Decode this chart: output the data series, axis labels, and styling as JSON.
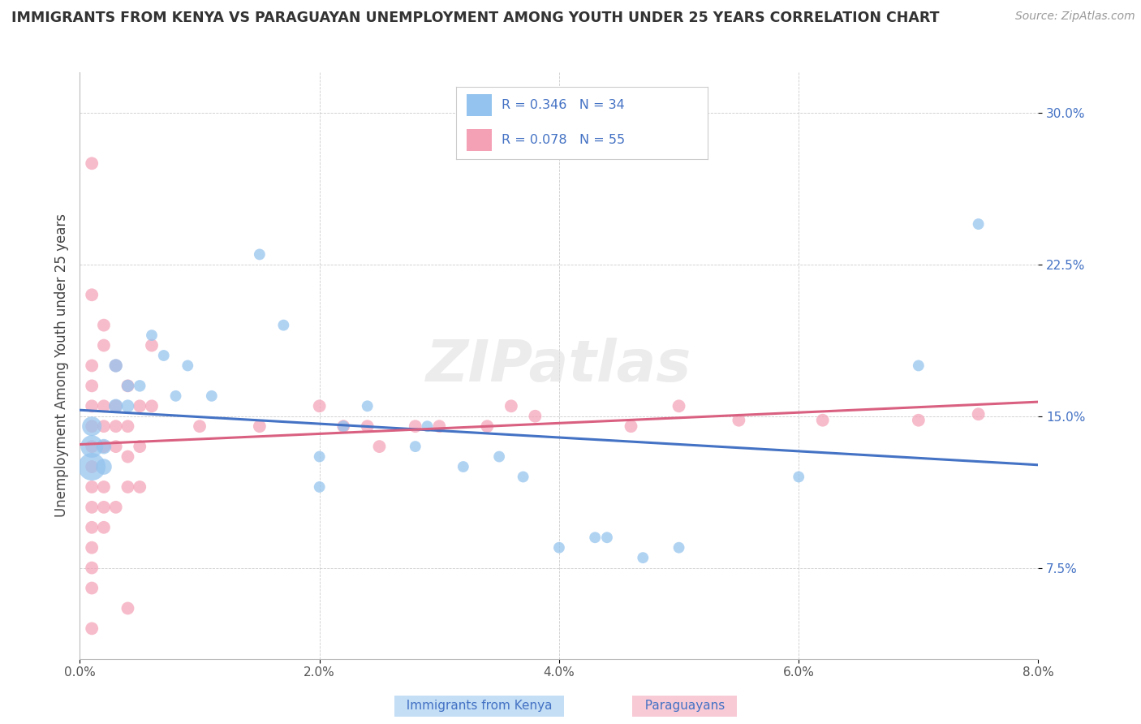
{
  "title": "IMMIGRANTS FROM KENYA VS PARAGUAYAN UNEMPLOYMENT AMONG YOUTH UNDER 25 YEARS CORRELATION CHART",
  "source": "Source: ZipAtlas.com",
  "ylabel": "Unemployment Among Youth under 25 years",
  "legend_label1": "Immigrants from Kenya",
  "legend_label2": "Paraguayans",
  "color_blue": "#93C3EE",
  "color_pink": "#F4A0B5",
  "color_blue_line": "#4472C4",
  "color_pink_line": "#D96080",
  "color_text": "#4472C4",
  "R1": 0.346,
  "N1": 34,
  "R2": 0.078,
  "N2": 55,
  "xlim": [
    0.0,
    0.08
  ],
  "ylim": [
    0.03,
    0.32
  ],
  "blue_points": [
    [
      0.001,
      0.125
    ],
    [
      0.001,
      0.135
    ],
    [
      0.001,
      0.145
    ],
    [
      0.002,
      0.125
    ],
    [
      0.002,
      0.135
    ],
    [
      0.003,
      0.155
    ],
    [
      0.003,
      0.175
    ],
    [
      0.004,
      0.155
    ],
    [
      0.004,
      0.165
    ],
    [
      0.005,
      0.165
    ],
    [
      0.006,
      0.19
    ],
    [
      0.007,
      0.18
    ],
    [
      0.008,
      0.16
    ],
    [
      0.009,
      0.175
    ],
    [
      0.011,
      0.16
    ],
    [
      0.015,
      0.23
    ],
    [
      0.017,
      0.195
    ],
    [
      0.02,
      0.13
    ],
    [
      0.02,
      0.115
    ],
    [
      0.022,
      0.145
    ],
    [
      0.024,
      0.155
    ],
    [
      0.028,
      0.135
    ],
    [
      0.029,
      0.145
    ],
    [
      0.032,
      0.125
    ],
    [
      0.035,
      0.13
    ],
    [
      0.037,
      0.12
    ],
    [
      0.04,
      0.085
    ],
    [
      0.043,
      0.09
    ],
    [
      0.044,
      0.09
    ],
    [
      0.047,
      0.08
    ],
    [
      0.05,
      0.085
    ],
    [
      0.06,
      0.12
    ],
    [
      0.07,
      0.175
    ],
    [
      0.075,
      0.245
    ]
  ],
  "pink_points": [
    [
      0.001,
      0.275
    ],
    [
      0.001,
      0.21
    ],
    [
      0.002,
      0.195
    ],
    [
      0.002,
      0.185
    ],
    [
      0.001,
      0.175
    ],
    [
      0.001,
      0.165
    ],
    [
      0.001,
      0.155
    ],
    [
      0.001,
      0.145
    ],
    [
      0.001,
      0.135
    ],
    [
      0.001,
      0.125
    ],
    [
      0.001,
      0.115
    ],
    [
      0.001,
      0.105
    ],
    [
      0.001,
      0.095
    ],
    [
      0.001,
      0.085
    ],
    [
      0.001,
      0.075
    ],
    [
      0.001,
      0.065
    ],
    [
      0.001,
      0.045
    ],
    [
      0.002,
      0.155
    ],
    [
      0.002,
      0.145
    ],
    [
      0.002,
      0.135
    ],
    [
      0.002,
      0.115
    ],
    [
      0.002,
      0.105
    ],
    [
      0.002,
      0.095
    ],
    [
      0.003,
      0.175
    ],
    [
      0.003,
      0.155
    ],
    [
      0.003,
      0.145
    ],
    [
      0.003,
      0.135
    ],
    [
      0.003,
      0.105
    ],
    [
      0.004,
      0.165
    ],
    [
      0.004,
      0.145
    ],
    [
      0.004,
      0.13
    ],
    [
      0.004,
      0.115
    ],
    [
      0.004,
      0.055
    ],
    [
      0.005,
      0.155
    ],
    [
      0.005,
      0.135
    ],
    [
      0.005,
      0.115
    ],
    [
      0.006,
      0.185
    ],
    [
      0.006,
      0.155
    ],
    [
      0.01,
      0.145
    ],
    [
      0.015,
      0.145
    ],
    [
      0.02,
      0.155
    ],
    [
      0.022,
      0.145
    ],
    [
      0.024,
      0.145
    ],
    [
      0.025,
      0.135
    ],
    [
      0.028,
      0.145
    ],
    [
      0.03,
      0.145
    ],
    [
      0.034,
      0.145
    ],
    [
      0.036,
      0.155
    ],
    [
      0.038,
      0.15
    ],
    [
      0.046,
      0.145
    ],
    [
      0.05,
      0.155
    ],
    [
      0.055,
      0.148
    ],
    [
      0.062,
      0.148
    ],
    [
      0.07,
      0.148
    ],
    [
      0.075,
      0.151
    ]
  ],
  "blue_sizes_raw": [
    600,
    400,
    300,
    200,
    180,
    160,
    140,
    130,
    120,
    110,
    100,
    100,
    100,
    100,
    100,
    100,
    100,
    100,
    100,
    100,
    100,
    100,
    100,
    100,
    100,
    100,
    100,
    100,
    100,
    100,
    100,
    100,
    100,
    100
  ]
}
